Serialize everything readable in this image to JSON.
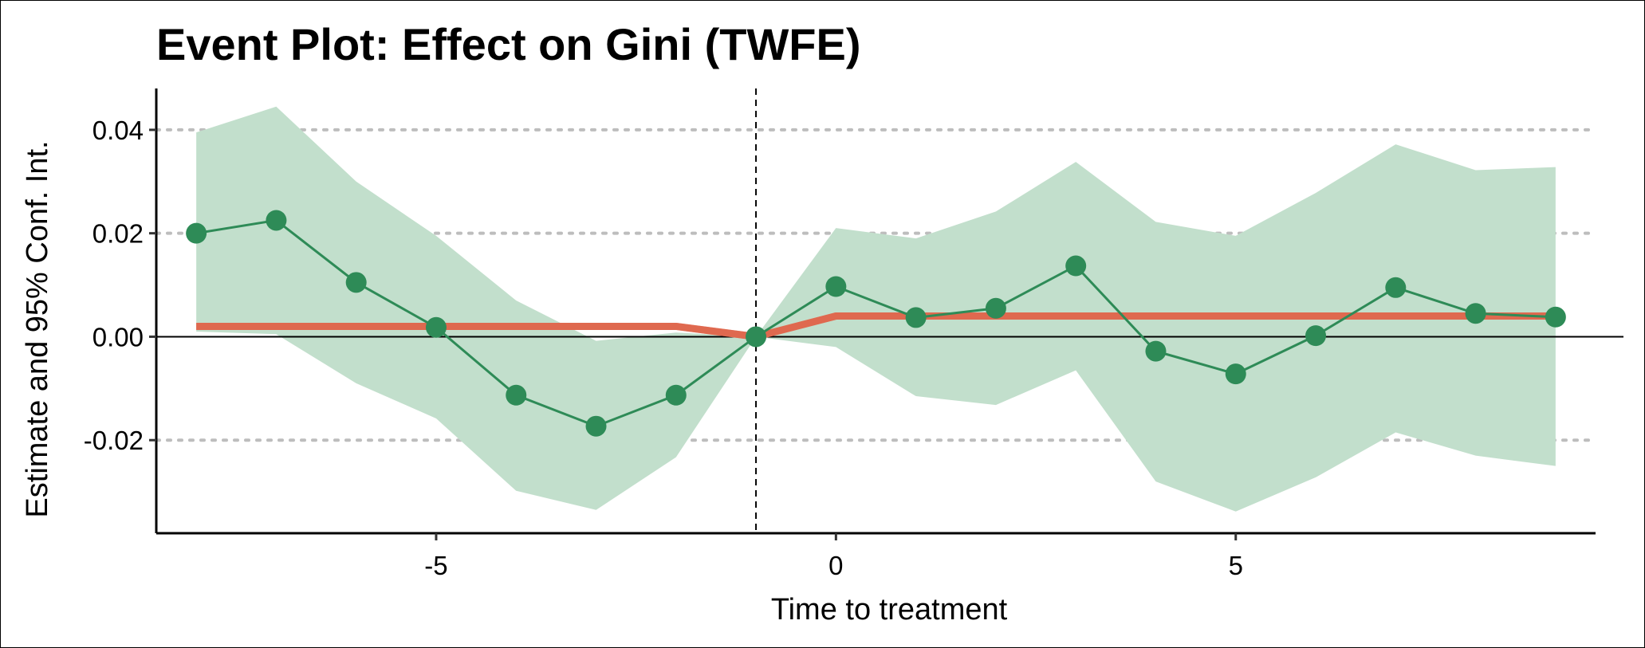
{
  "chart_data": {
    "type": "line",
    "title": "Event Plot: Effect on Gini (TWFE)",
    "xlabel": "Time to treatment",
    "ylabel": "Estimate and 95% Conf. Int.",
    "xlim": [
      -8.5,
      9.5
    ],
    "ylim": [
      -0.038,
      0.048
    ],
    "x_ticks": [
      -5,
      0,
      5
    ],
    "x_tick_labels": [
      "-5",
      "0",
      "5"
    ],
    "y_ticks": [
      -0.02,
      0.0,
      0.02,
      0.04
    ],
    "y_tick_labels": [
      "-0.02",
      "0.00",
      "0.02",
      "0.04"
    ],
    "grid": "horizontal dotted",
    "reference_lines": {
      "horizontal_y": 0,
      "vertical_x": -1
    },
    "colors": {
      "estimate": "#2e8b57",
      "ci_band": "#c2dfcc",
      "trend_line": "#ff6347",
      "trend_overlap": "#c47055",
      "grid": "#bdbdbd"
    },
    "series": [
      {
        "role": "estimate",
        "x": [
          -8,
          -7,
          -6,
          -5,
          -4,
          -3,
          -2,
          -1,
          0,
          1,
          2,
          3,
          4,
          5,
          6,
          7,
          8,
          9
        ],
        "values": [
          0.02,
          0.0225,
          0.0105,
          0.0018,
          -0.0113,
          -0.0173,
          -0.0113,
          0.0,
          0.0097,
          0.0037,
          0.0055,
          0.0137,
          -0.0028,
          -0.0072,
          0.0002,
          0.0095,
          0.0045,
          0.0038
        ],
        "ci_lower": [
          0.001,
          0.0005,
          -0.009,
          -0.0158,
          -0.0298,
          -0.0335,
          -0.0233,
          0.0,
          -0.002,
          -0.0115,
          -0.0132,
          -0.0065,
          -0.028,
          -0.0338,
          -0.0272,
          -0.0185,
          -0.023,
          -0.025
        ],
        "ci_upper": [
          0.0395,
          0.0445,
          0.03,
          0.0195,
          0.007,
          -0.0008,
          0.0008,
          0.0,
          0.021,
          0.019,
          0.0242,
          0.0338,
          0.0222,
          0.0195,
          0.0278,
          0.0372,
          0.0322,
          0.0328
        ]
      },
      {
        "role": "trend",
        "x": [
          -8,
          -2,
          -1,
          0,
          9
        ],
        "values": [
          0.002,
          0.002,
          0.0,
          0.004,
          0.004
        ]
      }
    ]
  }
}
